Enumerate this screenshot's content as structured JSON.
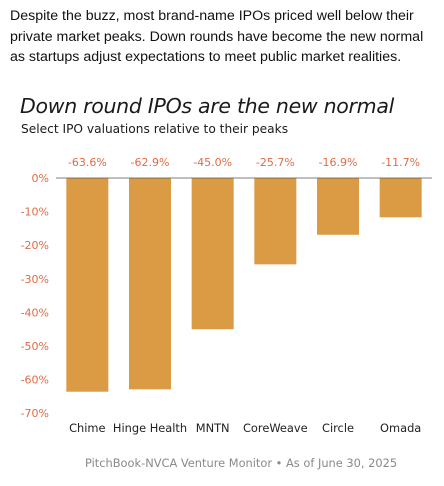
{
  "intro_text": "Despite the buzz, most brand-name IPOs priced well below their private market peaks. Down rounds have become the new normal as startups adjust expectations to meet public market realities.",
  "source_text": "PitchBook-NVCA Venture Monitor • As of June 30, 2025",
  "colors": {
    "bar": "#db9a44",
    "value_label": "#e06b45",
    "axis_label": "#e06b45",
    "category_label": "#222222",
    "zero_line": "#555555"
  },
  "chart_data": {
    "type": "bar",
    "title": "Down round IPOs are the new normal",
    "subtitle": "Select IPO valuations relative to their peaks",
    "xlabel": "",
    "ylabel": "",
    "categories": [
      "Chime",
      "Hinge Health",
      "MNTN",
      "CoreWeave",
      "Circle",
      "Omada"
    ],
    "values": [
      -63.6,
      -62.9,
      -45.0,
      -25.7,
      -16.9,
      -11.7
    ],
    "value_labels": [
      "-63.6%",
      "-62.9%",
      "-45.0%",
      "-25.7%",
      "-16.9%",
      "-11.7%"
    ],
    "ylim": [
      -70,
      0
    ],
    "yticks": [
      0,
      -10,
      -20,
      -30,
      -40,
      -50,
      -60,
      -70
    ],
    "ytick_labels": [
      "0%",
      "-10%",
      "-20%",
      "-30%",
      "-40%",
      "-50%",
      "-60%",
      "-70%"
    ],
    "grid": false,
    "legend": "none"
  }
}
